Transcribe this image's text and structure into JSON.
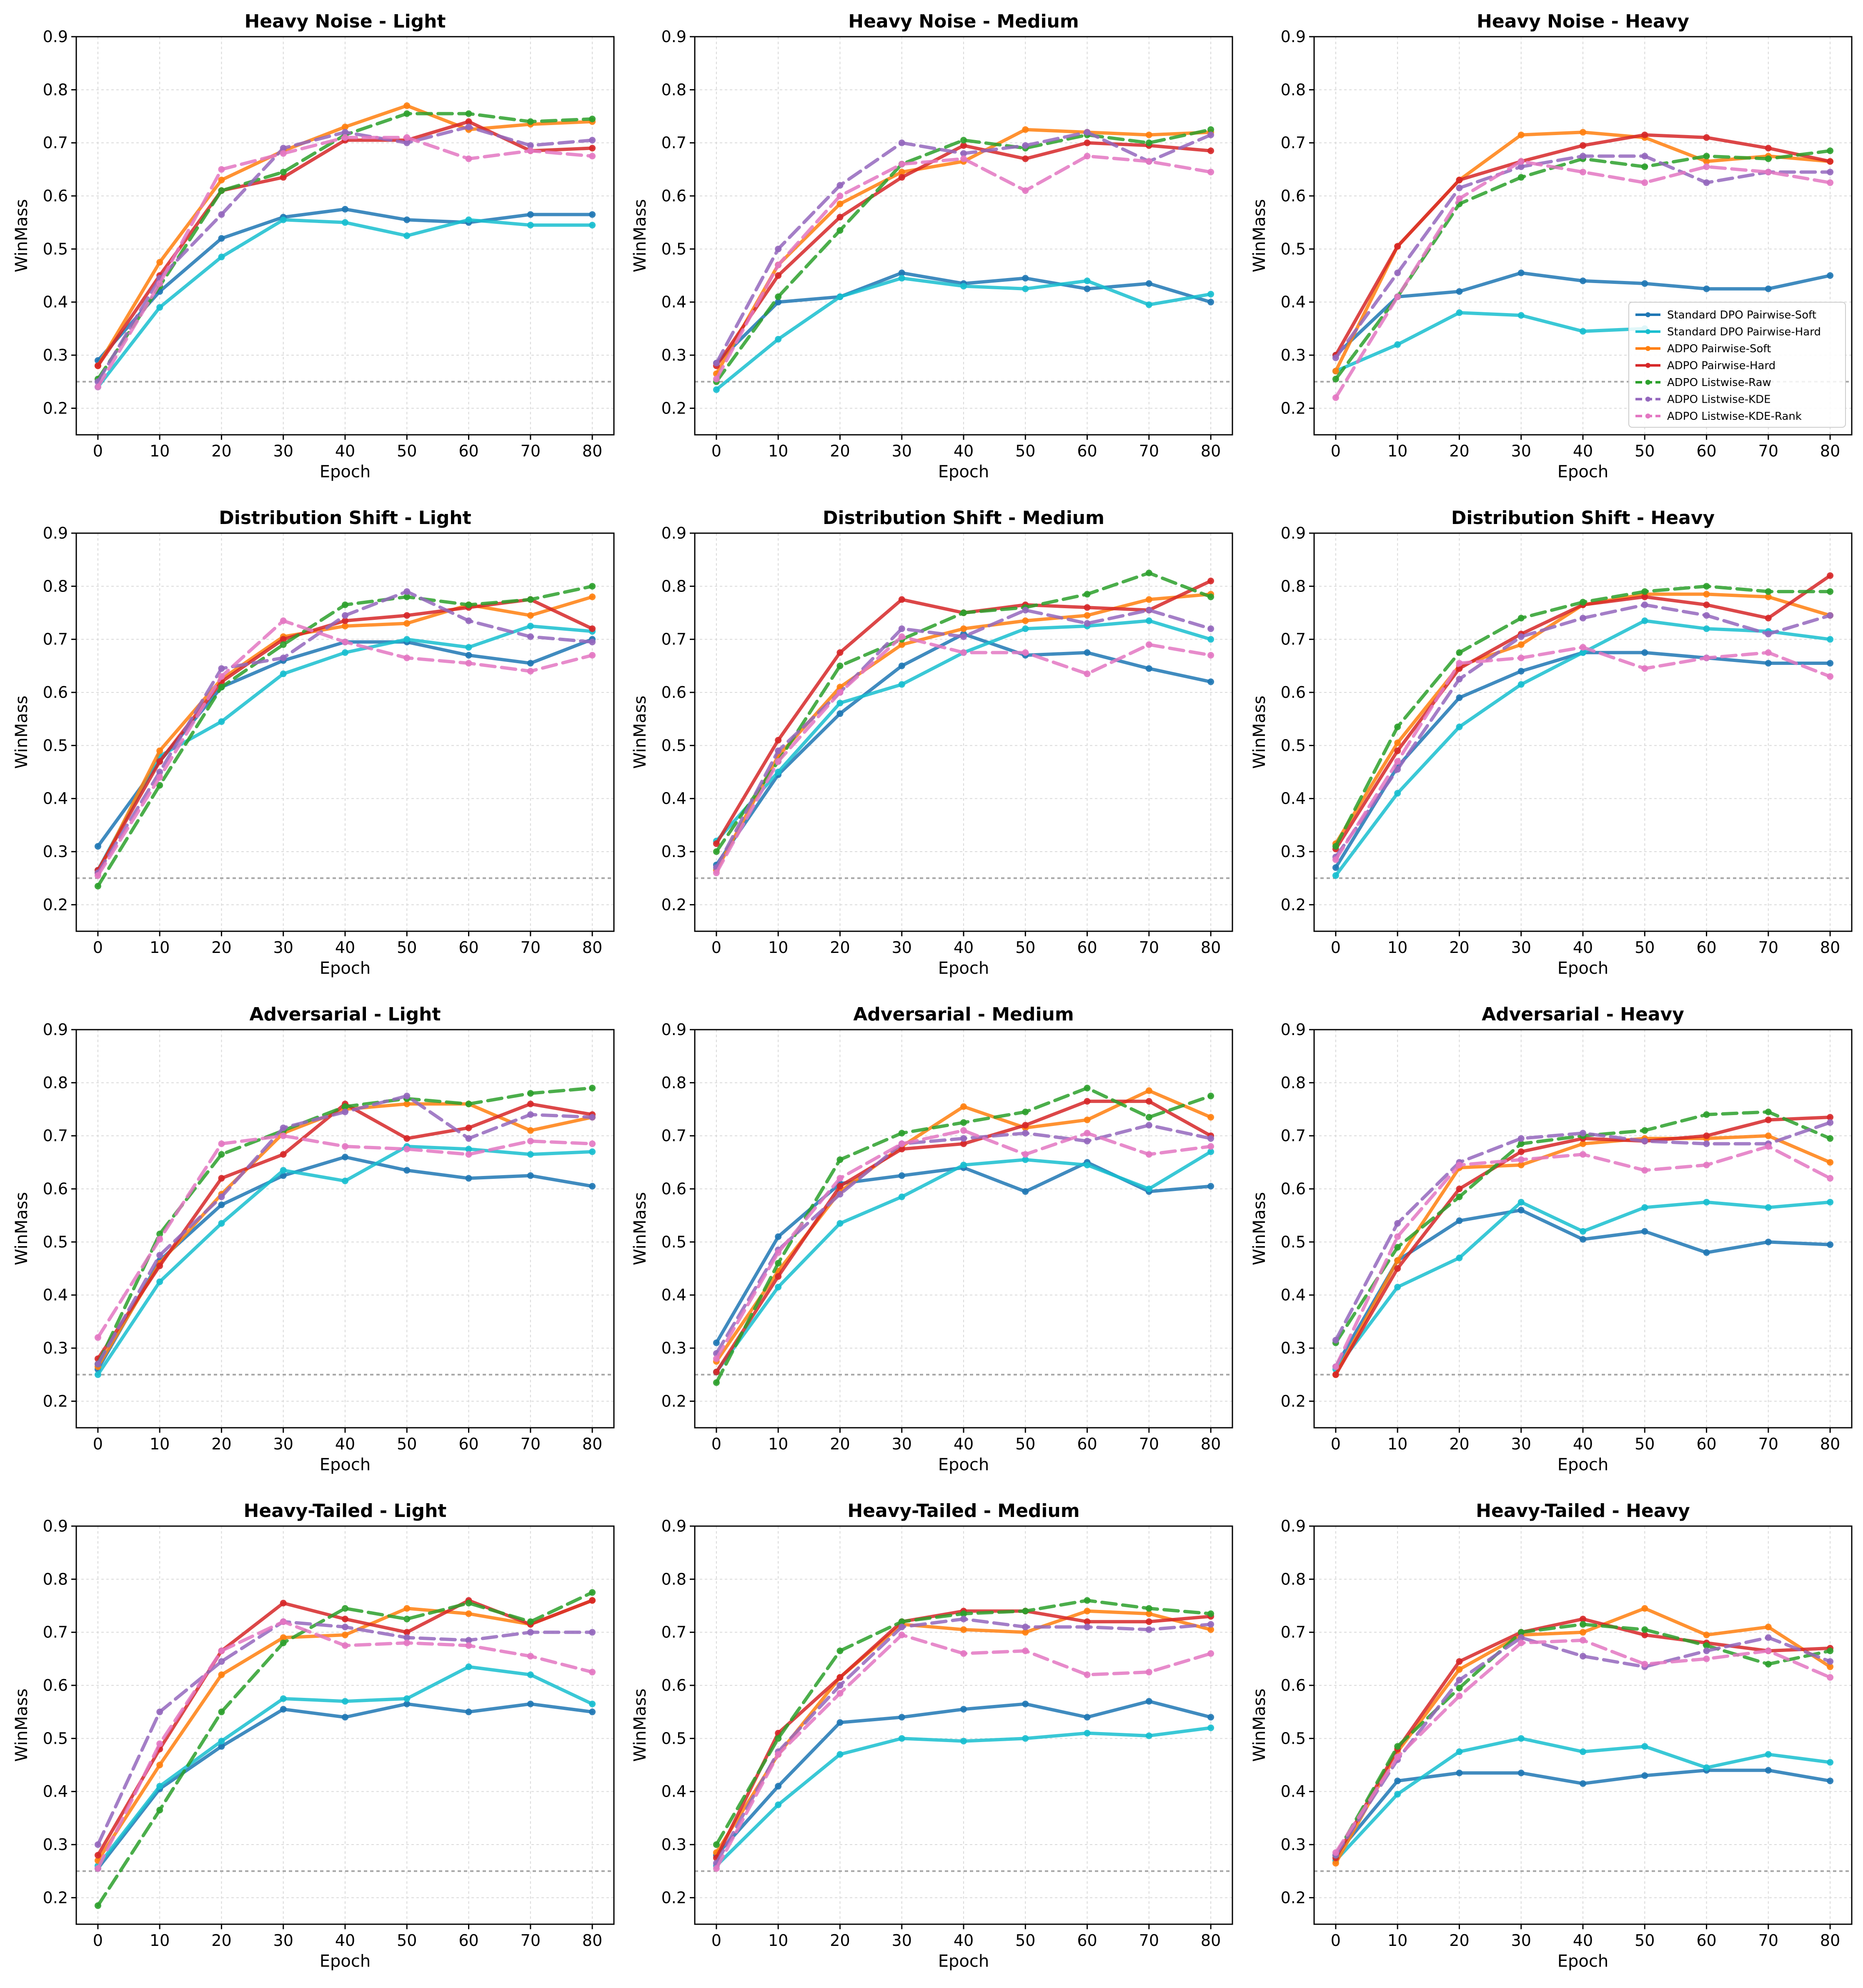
{
  "chart_data": {
    "type": "line",
    "x": [
      0,
      10,
      20,
      30,
      40,
      50,
      60,
      70,
      80
    ],
    "xlabel": "Epoch",
    "ylabel": "WinMass",
    "ylim": [
      0.15,
      0.9
    ],
    "yticks": [
      0.2,
      0.3,
      0.4,
      0.5,
      0.6,
      0.7,
      0.8,
      0.9
    ],
    "xticks": [
      0,
      10,
      20,
      30,
      40,
      50,
      60,
      70,
      80
    ],
    "reference_line": 0.25,
    "grid": true,
    "legend_location": "lower-right of top-right panel",
    "series_meta": [
      {
        "name": "Standard DPO Pairwise-Soft",
        "color": "#1f77b4",
        "dashed": false
      },
      {
        "name": "Standard DPO Pairwise-Hard",
        "color": "#17becf",
        "dashed": false
      },
      {
        "name": "ADPO Pairwise-Soft",
        "color": "#ff7f0e",
        "dashed": false
      },
      {
        "name": "ADPO Pairwise-Hard",
        "color": "#d62728",
        "dashed": false
      },
      {
        "name": "ADPO Listwise-Raw",
        "color": "#2ca02c",
        "dashed": true
      },
      {
        "name": "ADPO Listwise-KDE",
        "color": "#9467bd",
        "dashed": true
      },
      {
        "name": "ADPO Listwise-KDE-Rank",
        "color": "#e377c2",
        "dashed": true
      }
    ],
    "panels": [
      {
        "title": "Heavy Noise - Light",
        "series": [
          [
            0.29,
            0.42,
            0.52,
            0.56,
            0.575,
            0.555,
            0.55,
            0.565,
            0.565
          ],
          [
            0.24,
            0.39,
            0.485,
            0.555,
            0.55,
            0.525,
            0.555,
            0.545,
            0.545
          ],
          [
            0.28,
            0.475,
            0.63,
            0.685,
            0.73,
            0.77,
            0.725,
            0.735,
            0.74
          ],
          [
            0.28,
            0.45,
            0.61,
            0.635,
            0.705,
            0.705,
            0.74,
            0.685,
            0.69
          ],
          [
            0.255,
            0.43,
            0.61,
            0.645,
            0.715,
            0.755,
            0.755,
            0.74,
            0.745
          ],
          [
            0.25,
            0.445,
            0.565,
            0.69,
            0.72,
            0.7,
            0.73,
            0.695,
            0.705
          ],
          [
            0.24,
            0.435,
            0.65,
            0.68,
            0.71,
            0.71,
            0.67,
            0.685,
            0.675
          ]
        ]
      },
      {
        "title": "Heavy Noise - Medium",
        "series": [
          [
            0.285,
            0.4,
            0.41,
            0.455,
            0.435,
            0.445,
            0.425,
            0.435,
            0.4
          ],
          [
            0.235,
            0.33,
            0.41,
            0.445,
            0.43,
            0.425,
            0.44,
            0.395,
            0.415
          ],
          [
            0.265,
            0.47,
            0.585,
            0.645,
            0.665,
            0.725,
            0.72,
            0.715,
            0.72
          ],
          [
            0.28,
            0.45,
            0.56,
            0.635,
            0.695,
            0.67,
            0.7,
            0.695,
            0.685
          ],
          [
            0.25,
            0.41,
            0.535,
            0.66,
            0.705,
            0.69,
            0.715,
            0.7,
            0.725
          ],
          [
            0.285,
            0.5,
            0.62,
            0.7,
            0.68,
            0.695,
            0.72,
            0.665,
            0.715
          ],
          [
            0.255,
            0.47,
            0.6,
            0.66,
            0.67,
            0.61,
            0.675,
            0.665,
            0.645
          ]
        ]
      },
      {
        "title": "Heavy Noise - Heavy",
        "series": [
          [
            0.3,
            0.41,
            0.42,
            0.455,
            0.44,
            0.435,
            0.425,
            0.425,
            0.45
          ],
          [
            0.27,
            0.32,
            0.38,
            0.375,
            0.345,
            0.35,
            null,
            null,
            null
          ],
          [
            0.27,
            0.505,
            0.63,
            0.715,
            0.72,
            0.71,
            0.665,
            0.675,
            0.665
          ],
          [
            0.3,
            0.505,
            0.63,
            0.665,
            0.695,
            0.715,
            0.71,
            0.69,
            0.665
          ],
          [
            0.255,
            0.41,
            0.585,
            0.635,
            0.67,
            0.655,
            0.675,
            0.67,
            0.685
          ],
          [
            0.295,
            0.455,
            0.615,
            0.655,
            0.675,
            0.675,
            0.625,
            0.645,
            0.645
          ],
          [
            0.22,
            0.41,
            0.595,
            0.665,
            0.645,
            0.625,
            0.655,
            0.645,
            0.625
          ]
        ]
      },
      {
        "title": "Distribution Shift - Light",
        "series": [
          [
            0.31,
            0.47,
            0.61,
            0.66,
            0.695,
            0.695,
            0.67,
            0.655,
            0.7
          ],
          [
            0.265,
            0.48,
            0.545,
            0.635,
            0.675,
            0.7,
            0.685,
            0.725,
            0.715
          ],
          [
            0.26,
            0.49,
            0.625,
            0.705,
            0.725,
            0.73,
            0.765,
            0.745,
            0.78
          ],
          [
            0.265,
            0.47,
            0.62,
            0.7,
            0.735,
            0.745,
            0.76,
            0.775,
            0.72
          ],
          [
            0.235,
            0.425,
            0.61,
            0.69,
            0.765,
            0.78,
            0.765,
            0.775,
            0.8
          ],
          [
            0.26,
            0.45,
            0.645,
            0.665,
            0.745,
            0.79,
            0.735,
            0.705,
            0.695
          ],
          [
            0.255,
            0.44,
            0.63,
            0.735,
            0.695,
            0.665,
            0.655,
            0.64,
            0.67
          ]
        ]
      },
      {
        "title": "Distribution Shift - Medium",
        "series": [
          [
            0.275,
            0.445,
            0.56,
            0.65,
            0.71,
            0.67,
            0.675,
            0.645,
            0.62
          ],
          [
            0.32,
            0.45,
            0.58,
            0.615,
            0.675,
            0.72,
            0.725,
            0.735,
            0.7
          ],
          [
            0.265,
            0.48,
            0.61,
            0.69,
            0.72,
            0.735,
            0.745,
            0.775,
            0.785
          ],
          [
            0.315,
            0.51,
            0.675,
            0.775,
            0.75,
            0.765,
            0.76,
            0.755,
            0.81
          ],
          [
            0.3,
            0.47,
            0.65,
            0.7,
            0.75,
            0.76,
            0.785,
            0.825,
            0.78
          ],
          [
            0.27,
            0.49,
            0.6,
            0.72,
            0.705,
            0.755,
            0.73,
            0.755,
            0.72
          ],
          [
            0.26,
            0.47,
            0.6,
            0.705,
            0.675,
            0.675,
            0.635,
            0.69,
            0.67
          ]
        ]
      },
      {
        "title": "Distribution Shift - Heavy",
        "series": [
          [
            0.27,
            0.46,
            0.59,
            0.64,
            0.675,
            0.675,
            0.665,
            0.655,
            0.655
          ],
          [
            0.255,
            0.41,
            0.535,
            0.615,
            0.675,
            0.735,
            0.72,
            0.715,
            0.7
          ],
          [
            0.315,
            0.505,
            0.65,
            0.69,
            0.765,
            0.785,
            0.785,
            0.78,
            0.745
          ],
          [
            0.305,
            0.49,
            0.645,
            0.71,
            0.765,
            0.78,
            0.765,
            0.74,
            0.82
          ],
          [
            0.31,
            0.535,
            0.675,
            0.74,
            0.77,
            0.79,
            0.8,
            0.79,
            0.79
          ],
          [
            0.29,
            0.455,
            0.625,
            0.705,
            0.74,
            0.765,
            0.745,
            0.71,
            0.745
          ],
          [
            0.285,
            0.47,
            0.655,
            0.665,
            0.685,
            0.645,
            0.665,
            0.675,
            0.63
          ]
        ]
      },
      {
        "title": "Adversarial - Light",
        "series": [
          [
            0.26,
            0.465,
            0.57,
            0.625,
            0.66,
            0.635,
            0.62,
            0.625,
            0.605
          ],
          [
            0.25,
            0.425,
            0.535,
            0.635,
            0.615,
            0.68,
            0.675,
            0.665,
            0.67
          ],
          [
            0.265,
            0.46,
            0.59,
            0.705,
            0.75,
            0.76,
            0.76,
            0.71,
            0.735
          ],
          [
            0.28,
            0.455,
            0.62,
            0.665,
            0.76,
            0.695,
            0.715,
            0.76,
            0.74
          ],
          [
            0.27,
            0.515,
            0.665,
            0.71,
            0.755,
            0.77,
            0.76,
            0.78,
            0.79
          ],
          [
            0.27,
            0.475,
            0.585,
            0.715,
            0.745,
            0.775,
            0.695,
            0.74,
            0.735
          ],
          [
            0.32,
            0.505,
            0.685,
            0.7,
            0.68,
            0.675,
            0.665,
            0.69,
            0.685
          ]
        ]
      },
      {
        "title": "Adversarial - Medium",
        "series": [
          [
            0.31,
            0.51,
            0.61,
            0.625,
            0.64,
            0.595,
            0.65,
            0.595,
            0.605
          ],
          [
            0.255,
            0.415,
            0.535,
            0.585,
            0.645,
            0.655,
            0.645,
            0.6,
            0.67
          ],
          [
            0.275,
            0.445,
            0.595,
            0.68,
            0.755,
            0.715,
            0.73,
            0.785,
            0.735
          ],
          [
            0.255,
            0.435,
            0.605,
            0.675,
            0.685,
            0.72,
            0.765,
            0.765,
            0.7
          ],
          [
            0.235,
            0.46,
            0.655,
            0.705,
            0.725,
            0.745,
            0.79,
            0.735,
            0.775
          ],
          [
            0.29,
            0.485,
            0.59,
            0.685,
            0.695,
            0.705,
            0.69,
            0.72,
            0.695
          ],
          [
            0.28,
            0.48,
            0.62,
            0.685,
            0.71,
            0.665,
            0.705,
            0.665,
            0.68
          ]
        ]
      },
      {
        "title": "Adversarial - Heavy",
        "series": [
          [
            0.265,
            0.465,
            0.54,
            0.56,
            0.505,
            0.52,
            0.48,
            0.5,
            0.495
          ],
          [
            0.26,
            0.415,
            0.47,
            0.575,
            0.52,
            0.565,
            0.575,
            0.565,
            0.575
          ],
          [
            0.25,
            0.465,
            0.64,
            0.645,
            0.685,
            0.695,
            0.695,
            0.7,
            0.65
          ],
          [
            0.25,
            0.45,
            0.6,
            0.67,
            0.695,
            0.69,
            0.7,
            0.73,
            0.735
          ],
          [
            0.31,
            0.49,
            0.585,
            0.685,
            0.7,
            0.71,
            0.74,
            0.745,
            0.695
          ],
          [
            0.315,
            0.535,
            0.65,
            0.695,
            0.705,
            0.69,
            0.685,
            0.685,
            0.725
          ],
          [
            0.265,
            0.51,
            0.645,
            0.655,
            0.665,
            0.635,
            0.645,
            0.68,
            0.62
          ]
        ]
      },
      {
        "title": "Heavy-Tailed - Light",
        "series": [
          [
            0.255,
            0.405,
            0.485,
            0.555,
            0.54,
            0.565,
            0.55,
            0.565,
            0.55
          ],
          [
            0.26,
            0.41,
            0.495,
            0.575,
            0.57,
            0.575,
            0.635,
            0.62,
            0.565
          ],
          [
            0.27,
            0.45,
            0.62,
            0.69,
            0.695,
            0.745,
            0.735,
            0.715,
            0.76
          ],
          [
            0.28,
            0.48,
            0.665,
            0.755,
            0.725,
            0.7,
            0.76,
            0.715,
            0.76
          ],
          [
            0.185,
            0.365,
            0.55,
            0.68,
            0.745,
            0.725,
            0.755,
            0.72,
            0.775
          ],
          [
            0.3,
            0.55,
            0.645,
            0.72,
            0.71,
            0.69,
            0.685,
            0.7,
            0.7
          ],
          [
            0.255,
            0.49,
            0.665,
            0.72,
            0.675,
            0.68,
            0.675,
            0.655,
            0.625
          ]
        ]
      },
      {
        "title": "Heavy-Tailed - Medium",
        "series": [
          [
            0.28,
            0.41,
            0.53,
            0.54,
            0.555,
            0.565,
            0.54,
            0.57,
            0.54
          ],
          [
            0.26,
            0.375,
            0.47,
            0.5,
            0.495,
            0.5,
            0.51,
            0.505,
            0.52
          ],
          [
            0.285,
            0.47,
            0.615,
            0.715,
            0.705,
            0.7,
            0.74,
            0.735,
            0.705
          ],
          [
            0.275,
            0.51,
            0.615,
            0.72,
            0.74,
            0.74,
            0.72,
            0.72,
            0.73
          ],
          [
            0.3,
            0.5,
            0.665,
            0.72,
            0.735,
            0.74,
            0.76,
            0.745,
            0.735
          ],
          [
            0.265,
            0.475,
            0.6,
            0.71,
            0.725,
            0.71,
            0.71,
            0.705,
            0.715
          ],
          [
            0.255,
            0.47,
            0.585,
            0.695,
            0.66,
            0.665,
            0.62,
            0.625,
            0.66
          ]
        ]
      },
      {
        "title": "Heavy-Tailed - Heavy",
        "series": [
          [
            0.28,
            0.42,
            0.435,
            0.435,
            0.415,
            0.43,
            0.44,
            0.44,
            0.42
          ],
          [
            0.27,
            0.395,
            0.475,
            0.5,
            0.475,
            0.485,
            0.445,
            0.47,
            0.455
          ],
          [
            0.265,
            0.475,
            0.63,
            0.695,
            0.7,
            0.745,
            0.695,
            0.71,
            0.635
          ],
          [
            0.275,
            0.48,
            0.645,
            0.7,
            0.725,
            0.695,
            0.68,
            0.665,
            0.67
          ],
          [
            0.28,
            0.485,
            0.595,
            0.7,
            0.715,
            0.705,
            0.675,
            0.64,
            0.665
          ],
          [
            0.28,
            0.46,
            0.61,
            0.69,
            0.655,
            0.635,
            0.665,
            0.69,
            0.645
          ],
          [
            0.285,
            0.465,
            0.58,
            0.68,
            0.685,
            0.64,
            0.65,
            0.665,
            0.615
          ]
        ]
      }
    ]
  }
}
